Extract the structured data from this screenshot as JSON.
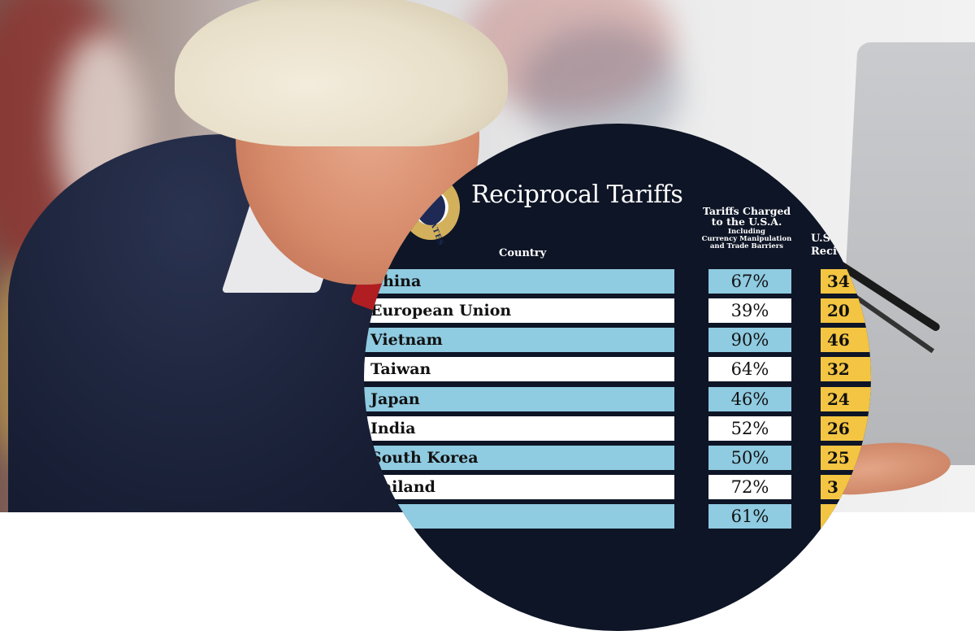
{
  "graphic": {
    "title": "Reciprocal Tariffs",
    "seal_text": "TED STATES",
    "headers": {
      "country": "Country",
      "charged_line1": "Tariffs Charged",
      "charged_line2": "to the U.S.A.",
      "charged_sub1": "Including",
      "charged_sub2": "Currency Manipulation",
      "charged_sub3": "and Trade Barriers",
      "recip_line1": "U.S.",
      "recip_line2": "Reci"
    },
    "rows": [
      {
        "country": "China",
        "charged": "67%",
        "recip": "34"
      },
      {
        "country": "European Union",
        "charged": "39%",
        "recip": "20"
      },
      {
        "country": "Vietnam",
        "charged": "90%",
        "recip": "46"
      },
      {
        "country": "Taiwan",
        "charged": "64%",
        "recip": "32"
      },
      {
        "country": "Japan",
        "charged": "46%",
        "recip": "24"
      },
      {
        "country": "India",
        "charged": "52%",
        "recip": "26"
      },
      {
        "country": "South Korea",
        "charged": "50%",
        "recip": "25"
      },
      {
        "country": "hailand",
        "charged": "72%",
        "recip": "3"
      },
      {
        "country": "",
        "charged": "61%",
        "recip": ""
      }
    ],
    "colors": {
      "panel": "#0e1526",
      "row_blue": "#8fcbe1",
      "row_white": "#ffffff",
      "recip_yellow": "#f4c542"
    }
  }
}
